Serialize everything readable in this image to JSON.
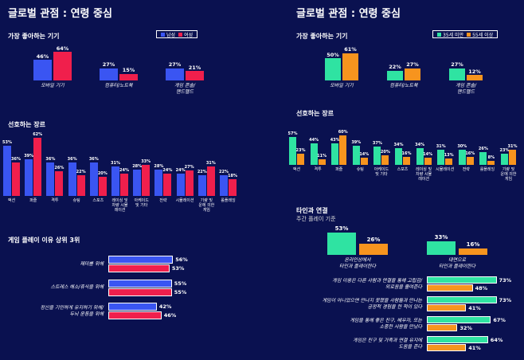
{
  "colors": {
    "background": "#0a1150",
    "male": "#3a55f2",
    "female": "#f01f4c",
    "under35": "#2fe3a2",
    "over55": "#f7941e"
  },
  "left": {
    "title": "글로벌 관점 : 연령 중심",
    "legend": [
      "남성",
      "여성"
    ],
    "devices_title": "가장 좋아하는 기기",
    "genres_title": "선호하는 장르",
    "reasons_title": "게임 플레이 이유 상위 3위"
  },
  "right": {
    "title": "글로벌 관점 : 연령 중심",
    "legend": [
      "35세 미만",
      "55세 이상"
    ],
    "devices_title": "가장 좋아하는 기기",
    "genres_title": "선호하는 장르",
    "connect_title": "타인과 연결",
    "connect_subtitle": "주간 플레이 기준"
  },
  "chart_data": [
    {
      "id": "left-devices",
      "type": "bar",
      "title": "가장 좋아하는 기기",
      "categories": [
        "모바일 기기",
        "컴퓨터/노트북",
        "게임 콘솔/\n핸드헬드"
      ],
      "series": [
        {
          "name": "남성",
          "values": [
            46,
            27,
            27
          ]
        },
        {
          "name": "여성",
          "values": [
            64,
            15,
            21
          ]
        }
      ]
    },
    {
      "id": "left-genres",
      "type": "bar",
      "title": "선호하는 장르",
      "categories": [
        "액션",
        "퍼즐",
        "격투",
        "슈팅",
        "스포츠",
        "레이싱 및\n차량 시뮬\n레이션",
        "아케이드\n및 기타",
        "전략",
        "시뮬레이션",
        "기량 및\n운에 의한\n게임",
        "롤플레잉"
      ],
      "series": [
        {
          "name": "남성",
          "values": [
            53,
            39,
            36,
            36,
            36,
            31,
            28,
            28,
            24,
            22,
            22
          ]
        },
        {
          "name": "여성",
          "values": [
            36,
            62,
            26,
            22,
            20,
            24,
            33,
            24,
            27,
            31,
            18
          ]
        }
      ]
    },
    {
      "id": "left-reasons",
      "type": "bar",
      "orientation": "horizontal",
      "title": "게임 플레이 이유 상위 3위",
      "categories": [
        "재미를 위해",
        "스트레스 해소/휴식을 위해",
        "정신을 기민하게 유지하기 위해/\n두뇌 운동을 위해"
      ],
      "series": [
        {
          "name": "남성",
          "values": [
            56,
            55,
            42
          ]
        },
        {
          "name": "여성",
          "values": [
            53,
            55,
            46
          ]
        }
      ]
    },
    {
      "id": "right-devices",
      "type": "bar",
      "title": "가장 좋아하는 기기",
      "categories": [
        "모바일 기기",
        "컴퓨터/노트북",
        "게임 콘솔/\n핸드헬드"
      ],
      "series": [
        {
          "name": "35세 미만",
          "values": [
            50,
            22,
            27
          ]
        },
        {
          "name": "55세 이상",
          "values": [
            61,
            27,
            12
          ]
        }
      ]
    },
    {
      "id": "right-genres",
      "type": "bar",
      "title": "선호하는 장르",
      "categories": [
        "액션",
        "격투",
        "퍼즐",
        "슈팅",
        "아케이드\n및 기타",
        "스포츠",
        "레이싱 및\n차량 시뮬\n레이션",
        "시뮬레이션",
        "전략",
        "롤플레잉",
        "기량 및\n운에 의한\n게임"
      ],
      "series": [
        {
          "name": "35세 미만",
          "values": [
            57,
            44,
            43,
            39,
            37,
            34,
            34,
            31,
            30,
            26,
            23
          ]
        },
        {
          "name": "55세 이상",
          "values": [
            23,
            11,
            60,
            14,
            20,
            16,
            14,
            13,
            16,
            8,
            31
          ]
        }
      ]
    },
    {
      "id": "right-connect",
      "type": "bar",
      "title": "타인과 연결",
      "subtitle": "주간 플레이 기준",
      "categories": [
        "온라인상에서\n타인과 플레이한다",
        "대면으로\n타인과 플레이한다"
      ],
      "series": [
        {
          "name": "35세 미만",
          "values": [
            53,
            33
          ]
        },
        {
          "name": "55세 이상",
          "values": [
            26,
            16
          ]
        }
      ]
    },
    {
      "id": "right-statements",
      "type": "bar",
      "orientation": "horizontal",
      "categories": [
        "게임 이용은 다른 사람과 연결을 통해 고립감/\n외로움을 줄여준다",
        "게임이 아니었으면 만나지 못했을 사람들과 만나는\n긍정적 경험을 한 적이 있다",
        "게임을 통해 좋은 친구, 배우자, 또는\n소중한 사람을 만났다",
        "게임은 친구 및 가족과 연결 유지에\n도움을 준다"
      ],
      "series": [
        {
          "name": "35세 미만",
          "values": [
            73,
            73,
            67,
            64
          ]
        },
        {
          "name": "55세 이상",
          "values": [
            48,
            41,
            32,
            41
          ]
        }
      ]
    }
  ]
}
